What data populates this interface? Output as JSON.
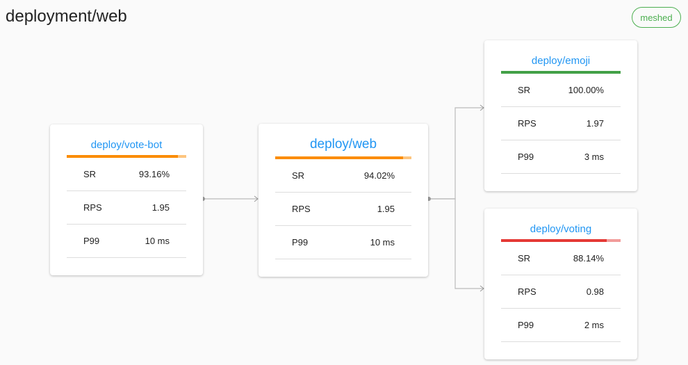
{
  "header": {
    "title": "deployment/web",
    "status_badge": "meshed"
  },
  "colors": {
    "success": "#43a047",
    "warning": "#fb8c00",
    "danger": "#e53935",
    "link": "#2196f3"
  },
  "nodes": [
    {
      "id": "vote-bot",
      "name": "deploy/vote-bot",
      "status": "warning",
      "success_rate": 93.16,
      "metrics": [
        {
          "label": "SR",
          "value": "93.16%"
        },
        {
          "label": "RPS",
          "value": "1.95"
        },
        {
          "label": "P99",
          "value": "10 ms"
        }
      ]
    },
    {
      "id": "web",
      "name": "deploy/web",
      "status": "warning",
      "success_rate": 94.02,
      "metrics": [
        {
          "label": "SR",
          "value": "94.02%"
        },
        {
          "label": "RPS",
          "value": "1.95"
        },
        {
          "label": "P99",
          "value": "10 ms"
        }
      ]
    },
    {
      "id": "emoji",
      "name": "deploy/emoji",
      "status": "success",
      "success_rate": 100.0,
      "metrics": [
        {
          "label": "SR",
          "value": "100.00%"
        },
        {
          "label": "RPS",
          "value": "1.97"
        },
        {
          "label": "P99",
          "value": "3 ms"
        }
      ]
    },
    {
      "id": "voting",
      "name": "deploy/voting",
      "status": "danger",
      "success_rate": 88.14,
      "metrics": [
        {
          "label": "SR",
          "value": "88.14%"
        },
        {
          "label": "RPS",
          "value": "0.98"
        },
        {
          "label": "P99",
          "value": "2 ms"
        }
      ]
    }
  ],
  "edges": [
    {
      "from": "vote-bot",
      "to": "web"
    },
    {
      "from": "web",
      "to": "emoji"
    },
    {
      "from": "web",
      "to": "voting"
    }
  ]
}
